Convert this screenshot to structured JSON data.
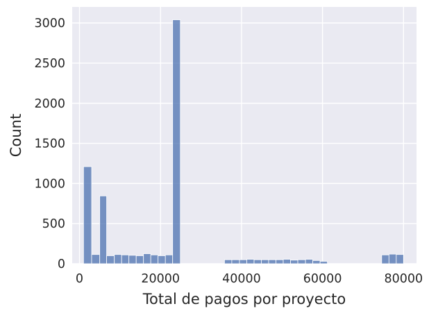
{
  "chart_data": {
    "type": "bar",
    "title": "",
    "xlabel": "Total de pagos por proyecto",
    "ylabel": "Count",
    "xlim": [
      -1800,
      83200
    ],
    "ylim": [
      0,
      3200
    ],
    "xticks": [
      0,
      20000,
      40000,
      60000,
      80000
    ],
    "yticks": [
      0,
      500,
      1000,
      1500,
      2000,
      2500,
      3000
    ],
    "grid": true,
    "bins": [
      {
        "x0": 1000,
        "x1": 3000,
        "count": 1210
      },
      {
        "x0": 3000,
        "x1": 5000,
        "count": 115
      },
      {
        "x0": 5000,
        "x1": 6700,
        "count": 845
      },
      {
        "x0": 6700,
        "x1": 8600,
        "count": 100
      },
      {
        "x0": 8600,
        "x1": 10400,
        "count": 115
      },
      {
        "x0": 10400,
        "x1": 12200,
        "count": 110
      },
      {
        "x0": 12200,
        "x1": 14000,
        "count": 105
      },
      {
        "x0": 14000,
        "x1": 15800,
        "count": 100
      },
      {
        "x0": 15800,
        "x1": 17600,
        "count": 125
      },
      {
        "x0": 17600,
        "x1": 19400,
        "count": 110
      },
      {
        "x0": 19400,
        "x1": 21200,
        "count": 100
      },
      {
        "x0": 21200,
        "x1": 23000,
        "count": 110
      },
      {
        "x0": 23000,
        "x1": 24900,
        "count": 3040
      },
      {
        "x0": 35800,
        "x1": 37600,
        "count": 50
      },
      {
        "x0": 37600,
        "x1": 39500,
        "count": 50
      },
      {
        "x0": 39500,
        "x1": 41300,
        "count": 50
      },
      {
        "x0": 41300,
        "x1": 43100,
        "count": 55
      },
      {
        "x0": 43100,
        "x1": 44900,
        "count": 50
      },
      {
        "x0": 44900,
        "x1": 46700,
        "count": 50
      },
      {
        "x0": 46700,
        "x1": 48500,
        "count": 50
      },
      {
        "x0": 48500,
        "x1": 50300,
        "count": 50
      },
      {
        "x0": 50300,
        "x1": 52100,
        "count": 55
      },
      {
        "x0": 52100,
        "x1": 53900,
        "count": 45
      },
      {
        "x0": 53900,
        "x1": 55800,
        "count": 50
      },
      {
        "x0": 55800,
        "x1": 57600,
        "count": 55
      },
      {
        "x0": 57600,
        "x1": 59400,
        "count": 40
      },
      {
        "x0": 59400,
        "x1": 61200,
        "count": 30
      },
      {
        "x0": 74600,
        "x1": 76400,
        "count": 110
      },
      {
        "x0": 76400,
        "x1": 78200,
        "count": 120
      },
      {
        "x0": 78200,
        "x1": 80000,
        "count": 115
      }
    ]
  }
}
